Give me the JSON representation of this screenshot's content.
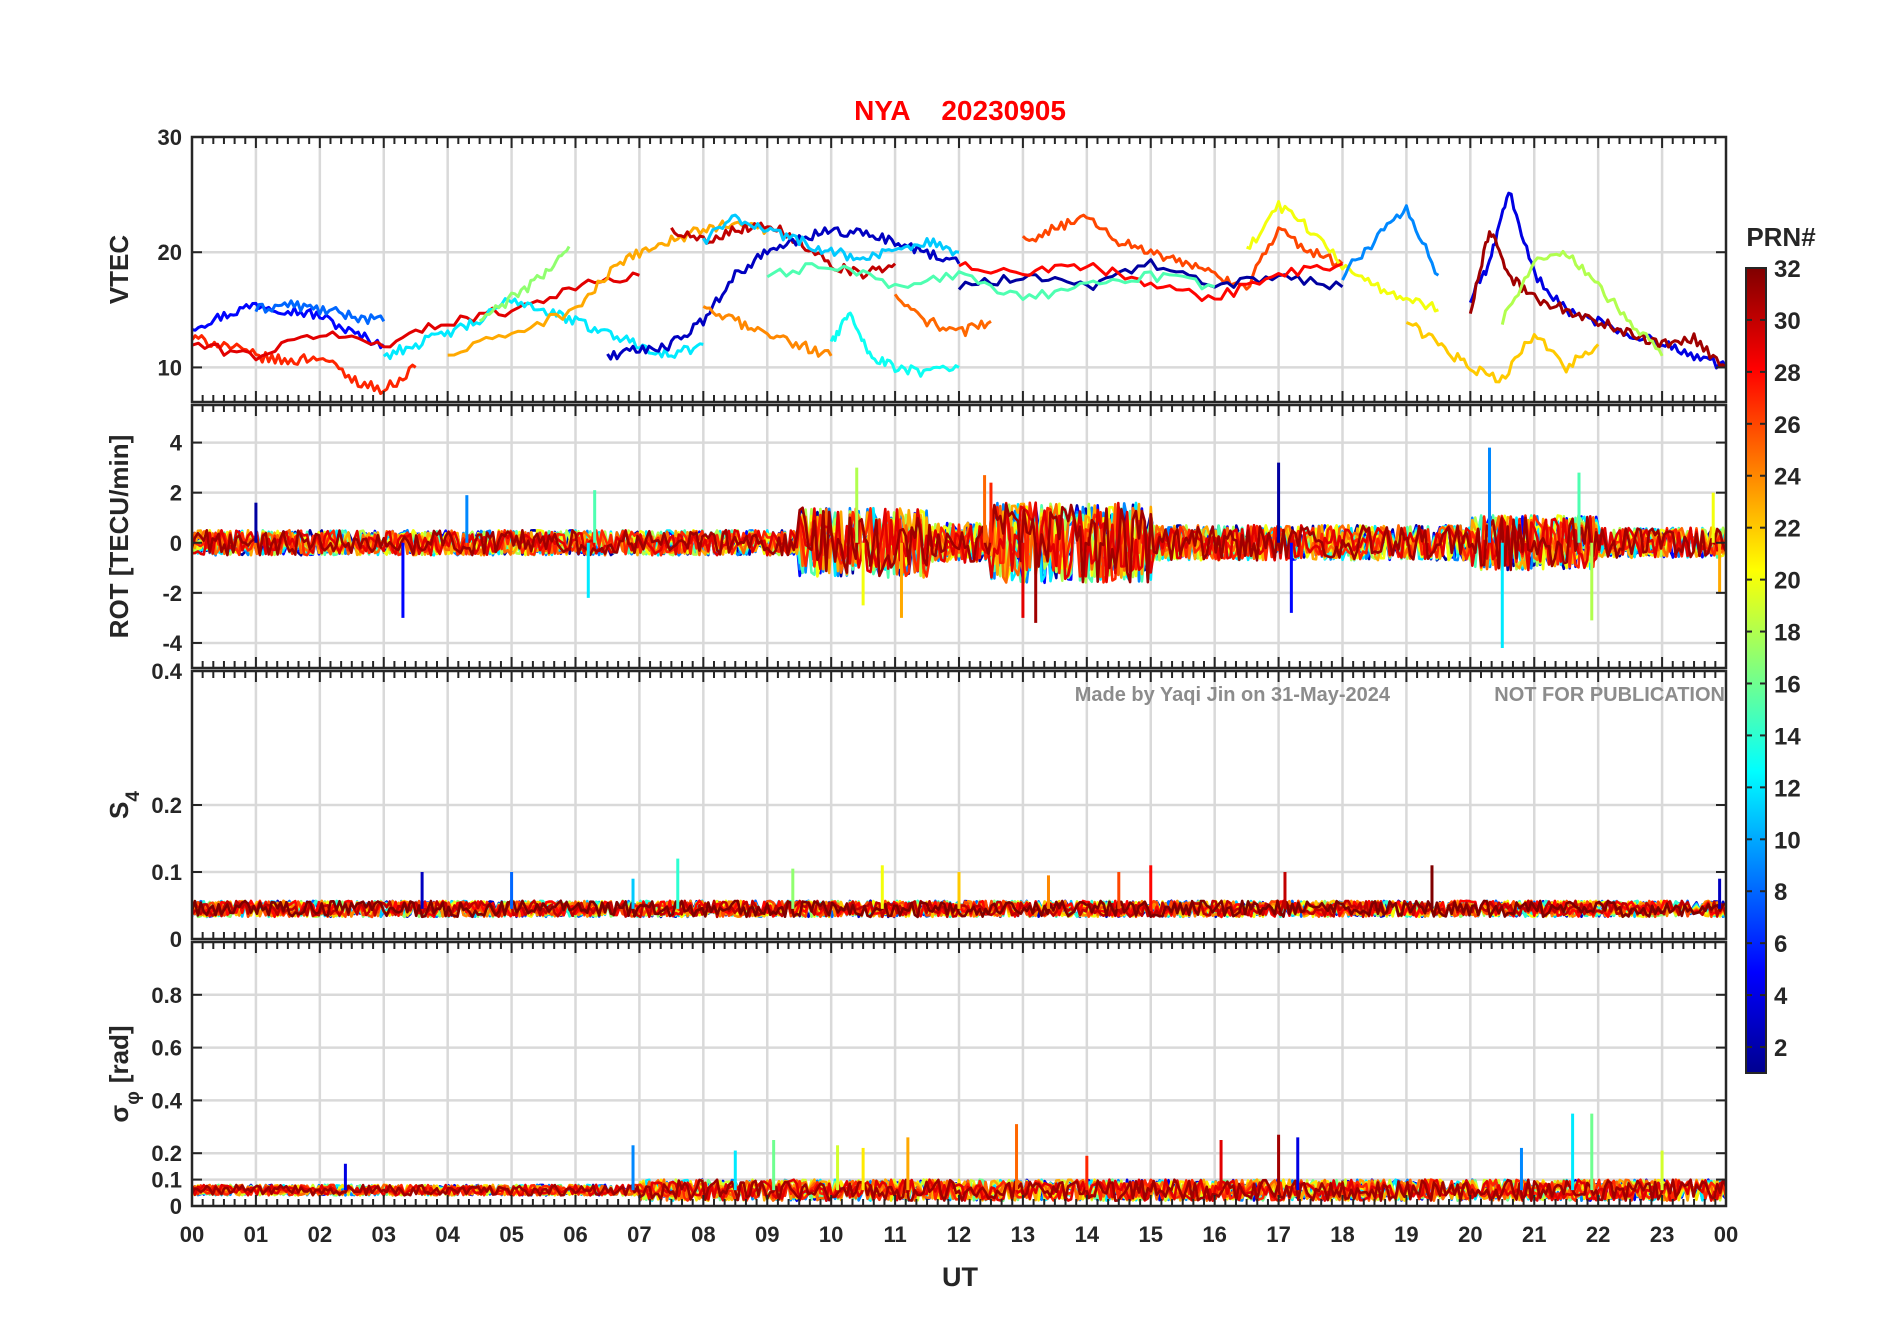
{
  "chart_data": {
    "type": "line",
    "title_station": "NYA",
    "title_date": "20230905",
    "xlabel": "UT",
    "x_ticks": [
      "00",
      "01",
      "02",
      "03",
      "04",
      "05",
      "06",
      "07",
      "08",
      "09",
      "10",
      "11",
      "12",
      "13",
      "14",
      "15",
      "16",
      "17",
      "18",
      "19",
      "20",
      "21",
      "22",
      "23",
      "00"
    ],
    "xlim": [
      0,
      24
    ],
    "grid": true,
    "note_left": "Made by Yaqi Jin on 31-May-2024",
    "note_right": "NOT FOR PUBLICATION",
    "colorbar": {
      "title": "PRN#",
      "colormap": "jet",
      "range": [
        1,
        32
      ],
      "ticks": [
        "2",
        "4",
        "6",
        "8",
        "10",
        "12",
        "14",
        "16",
        "18",
        "20",
        "22",
        "24",
        "26",
        "28",
        "30",
        "32"
      ]
    },
    "panels": [
      {
        "id": "vtec",
        "ylabel_main": "VTEC",
        "ylabel_sub": "",
        "ylabel_post": "",
        "ylim": [
          7,
          30
        ],
        "yticks": [
          {
            "v": 10,
            "label": "10"
          },
          {
            "v": 20,
            "label": "20"
          },
          {
            "v": 30,
            "label": "30"
          }
        ],
        "kind": "smooth",
        "series": [
          {
            "prn": 5,
            "x": [
              0,
              0.5,
              1,
              1.5,
              2,
              2.5,
              3
            ],
            "y": [
              13.5,
              14.5,
              15.5,
              15,
              14.5,
              13,
              12
            ]
          },
          {
            "prn": 8,
            "x": [
              1,
              1.5,
              2,
              2.5,
              3
            ],
            "y": [
              15,
              15.5,
              15,
              14.5,
              14
            ]
          },
          {
            "prn": 27,
            "x": [
              0,
              0.5,
              1,
              1.5,
              2,
              2.5,
              3,
              3.5
            ],
            "y": [
              12.5,
              12,
              11,
              10.5,
              11,
              9,
              8,
              10
            ]
          },
          {
            "prn": 29,
            "x": [
              0,
              1,
              2,
              3,
              4,
              5,
              6,
              7
            ],
            "y": [
              12,
              11,
              13,
              12,
              14,
              15,
              17,
              18
            ]
          },
          {
            "prn": 12,
            "x": [
              3,
              3.5,
              4,
              4.5,
              5,
              5.5,
              6,
              6.5,
              7,
              7.5,
              8
            ],
            "y": [
              11,
              12,
              13,
              14,
              16,
              15,
              14,
              13,
              12,
              11,
              12
            ]
          },
          {
            "prn": 17,
            "x": [
              4.5,
              5,
              5.5,
              5.9
            ],
            "y": [
              14,
              16,
              18,
              20.5
            ]
          },
          {
            "prn": 23,
            "x": [
              4,
              5,
              6,
              6.5,
              7,
              7.5,
              8,
              8.5,
              9
            ],
            "y": [
              11,
              13,
              15,
              18,
              20,
              21,
              22,
              22.5,
              22
            ]
          },
          {
            "prn": 30,
            "x": [
              7.5,
              8,
              8.5,
              9,
              9.5,
              10,
              10.5,
              11
            ],
            "y": [
              22,
              21,
              22,
              22.5,
              21,
              19,
              18,
              19
            ]
          },
          {
            "prn": 3,
            "x": [
              6.5,
              7,
              7.5,
              8,
              8.5,
              9,
              9.5,
              10,
              10.5,
              11,
              11.5,
              12
            ],
            "y": [
              11,
              11.5,
              12,
              14,
              18,
              20,
              21,
              22,
              21.5,
              21,
              20,
              19
            ]
          },
          {
            "prn": 11,
            "x": [
              8,
              8.5,
              9,
              9.5,
              10,
              10.5,
              11,
              11.5,
              12
            ],
            "y": [
              21,
              23,
              22,
              21,
              20,
              19.5,
              20,
              21,
              20
            ]
          },
          {
            "prn": 13,
            "x": [
              10,
              10.3,
              10.6,
              11,
              11.5,
              12
            ],
            "y": [
              12,
              15,
              11,
              10,
              9.5,
              10
            ]
          },
          {
            "prn": 24,
            "x": [
              8,
              8.5,
              9,
              9.5,
              10
            ],
            "y": [
              15,
              14,
              13,
              12,
              11
            ]
          },
          {
            "prn": 25,
            "x": [
              11,
              11.5,
              12,
              12.5
            ],
            "y": [
              16,
              14,
              13,
              14
            ]
          },
          {
            "prn": 26,
            "x": [
              13,
              13.5,
              14,
              14.5,
              15,
              15.5,
              16,
              16.5,
              17,
              17.5,
              18
            ],
            "y": [
              21,
              22,
              23,
              21,
              20,
              19,
              18,
              17,
              22,
              20,
              19
            ]
          },
          {
            "prn": 20,
            "x": [
              16.5,
              17,
              17.5,
              18,
              18.5,
              19,
              19.5
            ],
            "y": [
              20,
              24,
              22,
              19,
              17,
              16,
              15
            ]
          },
          {
            "prn": 9,
            "x": [
              18,
              18.5,
              19,
              19.5
            ],
            "y": [
              18,
              21,
              24,
              18
            ]
          },
          {
            "prn": 4,
            "x": [
              20,
              20.3,
              20.6,
              21,
              21.5,
              22,
              22.5,
              23,
              23.5,
              24
            ],
            "y": [
              16,
              19,
              25.5,
              18,
              15,
              14,
              13,
              12,
              11,
              10
            ]
          },
          {
            "prn": 31,
            "x": [
              20,
              20.3,
              20.6,
              21,
              21.5,
              22,
              22.5,
              23,
              23.5,
              24
            ],
            "y": [
              15,
              22,
              18,
              16,
              15,
              14,
              13,
              12,
              12.5,
              10
            ]
          },
          {
            "prn": 18,
            "x": [
              20.5,
              21,
              21.5,
              22,
              22.5,
              23
            ],
            "y": [
              14,
              19,
              20,
              17,
              14,
              11
            ]
          },
          {
            "prn": 2,
            "x": [
              12,
              13,
              14,
              15,
              16,
              17,
              18
            ],
            "y": [
              17,
              18,
              17,
              19,
              17,
              18,
              17
            ]
          },
          {
            "prn": 28,
            "x": [
              12,
              13,
              14,
              15,
              16,
              17,
              18
            ],
            "y": [
              19,
              18,
              19,
              17,
              16,
              18,
              19
            ]
          },
          {
            "prn": 15,
            "x": [
              9,
              10,
              11,
              12,
              13,
              14,
              15,
              16
            ],
            "y": [
              18,
              19,
              17,
              18,
              16,
              17,
              18,
              17
            ]
          },
          {
            "prn": 22,
            "x": [
              19,
              19.5,
              20,
              20.5,
              21,
              21.5,
              22
            ],
            "y": [
              14,
              12,
              10,
              9,
              13,
              10,
              12
            ]
          }
        ]
      },
      {
        "id": "rot",
        "ylabel_main": "ROT [TECU/min]",
        "ylabel_sub": "",
        "ylabel_post": "",
        "ylim": [
          -5,
          5.5
        ],
        "yticks": [
          {
            "v": -4,
            "label": "-4"
          },
          {
            "v": -2,
            "label": "-2"
          },
          {
            "v": 0,
            "label": "0"
          },
          {
            "v": 2,
            "label": "2"
          },
          {
            "v": 4,
            "label": "4"
          }
        ],
        "kind": "noise",
        "base": 0,
        "amp_segments": [
          {
            "x0": 0,
            "x1": 9.5,
            "amp": 0.5
          },
          {
            "x0": 9.5,
            "x1": 11.5,
            "amp": 1.4
          },
          {
            "x0": 11.5,
            "x1": 12.5,
            "amp": 0.8
          },
          {
            "x0": 12.5,
            "x1": 15,
            "amp": 1.6
          },
          {
            "x0": 15,
            "x1": 20,
            "amp": 0.7
          },
          {
            "x0": 20,
            "x1": 22,
            "amp": 1.1
          },
          {
            "x0": 22,
            "x1": 24,
            "amp": 0.6
          }
        ],
        "prns": [
          2,
          5,
          9,
          12,
          15,
          18,
          20,
          23,
          25,
          27,
          29,
          31
        ],
        "spikes": [
          {
            "x": 1.0,
            "v": 1.6
          },
          {
            "x": 3.3,
            "v": -3.0
          },
          {
            "x": 4.3,
            "v": 1.9
          },
          {
            "x": 6.2,
            "v": -2.2
          },
          {
            "x": 6.3,
            "v": 2.1
          },
          {
            "x": 10.4,
            "v": 3.0
          },
          {
            "x": 10.5,
            "v": -2.5
          },
          {
            "x": 11.1,
            "v": -3.0
          },
          {
            "x": 12.4,
            "v": 2.7
          },
          {
            "x": 12.5,
            "v": 2.4
          },
          {
            "x": 13.0,
            "v": -3.0
          },
          {
            "x": 13.2,
            "v": -3.2
          },
          {
            "x": 17.0,
            "v": 3.2
          },
          {
            "x": 17.2,
            "v": -2.8
          },
          {
            "x": 20.3,
            "v": 3.8
          },
          {
            "x": 20.5,
            "v": -4.2
          },
          {
            "x": 21.7,
            "v": 2.8
          },
          {
            "x": 21.9,
            "v": -3.1
          },
          {
            "x": 23.8,
            "v": 2.0
          },
          {
            "x": 23.9,
            "v": -2.0
          }
        ]
      },
      {
        "id": "s4",
        "ylabel_main": "S",
        "ylabel_sub": "4",
        "ylabel_post": "",
        "ylim": [
          0,
          0.4
        ],
        "yticks": [
          {
            "v": 0,
            "label": "0"
          },
          {
            "v": 0.1,
            "label": "0.1"
          },
          {
            "v": 0.2,
            "label": "0.2"
          },
          {
            "v": 0.4,
            "label": "0.4"
          }
        ],
        "kind": "noise",
        "base": 0.045,
        "amp_segments": [
          {
            "x0": 0,
            "x1": 24,
            "amp": 0.012
          }
        ],
        "prns": [
          3,
          8,
          11,
          14,
          17,
          20,
          22,
          24,
          26,
          28,
          30,
          32
        ],
        "spikes": [
          {
            "x": 3.6,
            "v": 0.1
          },
          {
            "x": 5.0,
            "v": 0.1
          },
          {
            "x": 6.9,
            "v": 0.09
          },
          {
            "x": 7.6,
            "v": 0.12
          },
          {
            "x": 9.4,
            "v": 0.105
          },
          {
            "x": 10.8,
            "v": 0.11
          },
          {
            "x": 12.0,
            "v": 0.1
          },
          {
            "x": 13.4,
            "v": 0.095
          },
          {
            "x": 14.5,
            "v": 0.1
          },
          {
            "x": 15.0,
            "v": 0.11
          },
          {
            "x": 17.1,
            "v": 0.1
          },
          {
            "x": 19.4,
            "v": 0.11
          },
          {
            "x": 23.9,
            "v": 0.09
          }
        ]
      },
      {
        "id": "sigphi",
        "ylabel_main": "σ",
        "ylabel_sub": "φ",
        "ylabel_post": "[rad]",
        "ylim": [
          0,
          1.0
        ],
        "yticks": [
          {
            "v": 0,
            "label": "0"
          },
          {
            "v": 0.1,
            "label": "0.1"
          },
          {
            "v": 0.2,
            "label": "0.2"
          },
          {
            "v": 0.4,
            "label": "0.4"
          },
          {
            "v": 0.6,
            "label": "0.6"
          },
          {
            "v": 0.8,
            "label": "0.8"
          }
        ],
        "kind": "noise",
        "base": 0.06,
        "amp_segments": [
          {
            "x0": 0,
            "x1": 7,
            "amp": 0.02
          },
          {
            "x0": 7,
            "x1": 24,
            "amp": 0.04
          }
        ],
        "prns": [
          4,
          9,
          12,
          16,
          19,
          21,
          23,
          25,
          27,
          29,
          31
        ],
        "spikes": [
          {
            "x": 2.4,
            "v": 0.16
          },
          {
            "x": 6.9,
            "v": 0.23
          },
          {
            "x": 8.5,
            "v": 0.21
          },
          {
            "x": 9.1,
            "v": 0.25
          },
          {
            "x": 10.1,
            "v": 0.23
          },
          {
            "x": 10.5,
            "v": 0.22
          },
          {
            "x": 11.2,
            "v": 0.26
          },
          {
            "x": 12.9,
            "v": 0.31
          },
          {
            "x": 14.0,
            "v": 0.19
          },
          {
            "x": 16.1,
            "v": 0.25
          },
          {
            "x": 17.0,
            "v": 0.27
          },
          {
            "x": 17.3,
            "v": 0.26
          },
          {
            "x": 20.8,
            "v": 0.22
          },
          {
            "x": 21.6,
            "v": 0.35
          },
          {
            "x": 21.9,
            "v": 0.35
          },
          {
            "x": 23.0,
            "v": 0.21
          }
        ]
      }
    ]
  }
}
